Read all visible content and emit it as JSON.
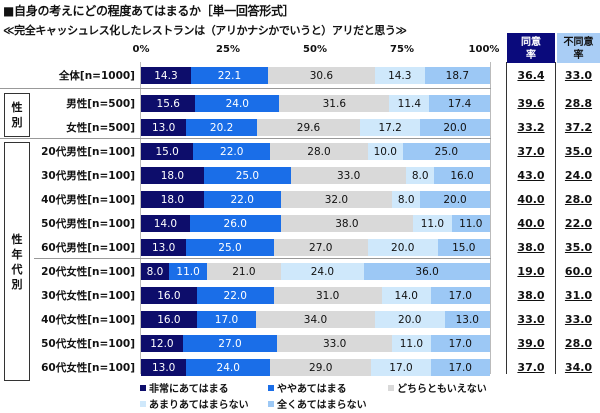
{
  "title": "■自身の考えにどの程度あてはまるか［単一回答形式］",
  "subtitle": "≪完全キャッシュレス化したレストランは（アリかナシかでいうと）アリだと思う≫",
  "axis_ticks": [
    "0%",
    "25%",
    "50%",
    "75%",
    "100%"
  ],
  "columns": {
    "agree": "同意\n率",
    "agree_l1": "同意",
    "agree_l2": "率",
    "disagree_l1": "不同意",
    "disagree_l2": "率"
  },
  "groups": {
    "gender": "性別",
    "gender_chars": [
      "性",
      "別"
    ],
    "age_gender": "性年代別",
    "age_gender_chars": [
      "性",
      "年",
      "代",
      "別"
    ]
  },
  "colors": {
    "s0": "#0d0d6b",
    "s1": "#1a6ee8",
    "s2": "#d9d9d9",
    "s3": "#cfe8fb",
    "s4": "#9cc8f5",
    "agree_header": "#0a0a7c",
    "disagree_header": "#a9cdf5"
  },
  "legend": [
    "非常にあてはまる",
    "ややあてはまる",
    "どちらともいえない",
    "あまりあてはまらない",
    "全くあてはまらない"
  ],
  "chart_data": {
    "type": "bar",
    "stacked": true,
    "orientation": "horizontal",
    "title": "自身の考えにどの程度あてはまるか［単一回答形式］",
    "subtitle": "≪完全キャッシュレス化したレストランは（アリかナシかでいうと）アリだと思う≫",
    "xlabel": "",
    "ylabel": "",
    "xlim": [
      0,
      100
    ],
    "xticks": [
      "0%",
      "25%",
      "50%",
      "75%",
      "100%"
    ],
    "legend_position": "bottom",
    "categories": [
      "全体[n=1000]",
      "男性[n=500]",
      "女性[n=500]",
      "20代男性[n=100]",
      "30代男性[n=100]",
      "40代男性[n=100]",
      "50代男性[n=100]",
      "60代男性[n=100]",
      "20代女性[n=100]",
      "30代女性[n=100]",
      "40代女性[n=100]",
      "50代女性[n=100]",
      "60代女性[n=100]"
    ],
    "series": [
      {
        "name": "非常にあてはまる",
        "values": [
          14.3,
          15.6,
          13.0,
          15.0,
          18.0,
          18.0,
          14.0,
          13.0,
          8.0,
          16.0,
          16.0,
          12.0,
          13.0
        ]
      },
      {
        "name": "ややあてはまる",
        "values": [
          22.1,
          24.0,
          20.2,
          22.0,
          25.0,
          22.0,
          26.0,
          25.0,
          11.0,
          22.0,
          17.0,
          27.0,
          24.0
        ]
      },
      {
        "name": "どちらともいえない",
        "values": [
          30.6,
          31.6,
          29.6,
          28.0,
          33.0,
          32.0,
          38.0,
          27.0,
          21.0,
          31.0,
          34.0,
          33.0,
          29.0
        ]
      },
      {
        "name": "あまりあてはまらない",
        "values": [
          14.3,
          11.4,
          17.2,
          10.0,
          8.0,
          8.0,
          11.0,
          20.0,
          24.0,
          14.0,
          20.0,
          11.0,
          17.0
        ]
      },
      {
        "name": "全くあてはまらない",
        "values": [
          18.7,
          17.4,
          20.0,
          25.0,
          16.0,
          20.0,
          11.0,
          15.0,
          36.0,
          17.0,
          13.0,
          17.0,
          17.0
        ]
      }
    ],
    "side_columns": {
      "同意率": [
        36.4,
        39.6,
        33.2,
        37.0,
        43.0,
        40.0,
        40.0,
        38.0,
        19.0,
        38.0,
        33.0,
        39.0,
        37.0
      ],
      "不同意率": [
        33.0,
        28.8,
        37.2,
        35.0,
        24.0,
        28.0,
        22.0,
        35.0,
        60.0,
        31.0,
        33.0,
        28.0,
        34.0
      ]
    }
  },
  "rows": [
    {
      "label": "全体[n=1000]",
      "v": [
        "14.3",
        "22.1",
        "30.6",
        "14.3",
        "18.7"
      ],
      "agree": "36.4",
      "disagree": "33.0"
    },
    {
      "label": "男性[n=500]",
      "v": [
        "15.6",
        "24.0",
        "31.6",
        "11.4",
        "17.4"
      ],
      "agree": "39.6",
      "disagree": "28.8"
    },
    {
      "label": "女性[n=500]",
      "v": [
        "13.0",
        "20.2",
        "29.6",
        "17.2",
        "20.0"
      ],
      "agree": "33.2",
      "disagree": "37.2"
    },
    {
      "label": "20代男性[n=100]",
      "v": [
        "15.0",
        "22.0",
        "28.0",
        "10.0",
        "25.0"
      ],
      "agree": "37.0",
      "disagree": "35.0"
    },
    {
      "label": "30代男性[n=100]",
      "v": [
        "18.0",
        "25.0",
        "33.0",
        "8.0",
        "16.0"
      ],
      "agree": "43.0",
      "disagree": "24.0"
    },
    {
      "label": "40代男性[n=100]",
      "v": [
        "18.0",
        "22.0",
        "32.0",
        "8.0",
        "20.0"
      ],
      "agree": "40.0",
      "disagree": "28.0"
    },
    {
      "label": "50代男性[n=100]",
      "v": [
        "14.0",
        "26.0",
        "38.0",
        "11.0",
        "11.0"
      ],
      "agree": "40.0",
      "disagree": "22.0"
    },
    {
      "label": "60代男性[n=100]",
      "v": [
        "13.0",
        "25.0",
        "27.0",
        "20.0",
        "15.0"
      ],
      "agree": "38.0",
      "disagree": "35.0"
    },
    {
      "label": "20代女性[n=100]",
      "v": [
        "8.0",
        "11.0",
        "21.0",
        "24.0",
        "36.0"
      ],
      "agree": "19.0",
      "disagree": "60.0"
    },
    {
      "label": "30代女性[n=100]",
      "v": [
        "16.0",
        "22.0",
        "31.0",
        "14.0",
        "17.0"
      ],
      "agree": "38.0",
      "disagree": "31.0"
    },
    {
      "label": "40代女性[n=100]",
      "v": [
        "16.0",
        "17.0",
        "34.0",
        "20.0",
        "13.0"
      ],
      "agree": "33.0",
      "disagree": "33.0"
    },
    {
      "label": "50代女性[n=100]",
      "v": [
        "12.0",
        "27.0",
        "33.0",
        "11.0",
        "17.0"
      ],
      "agree": "39.0",
      "disagree": "28.0"
    },
    {
      "label": "60代女性[n=100]",
      "v": [
        "13.0",
        "24.0",
        "29.0",
        "17.0",
        "17.0"
      ],
      "agree": "37.0",
      "disagree": "34.0"
    }
  ]
}
